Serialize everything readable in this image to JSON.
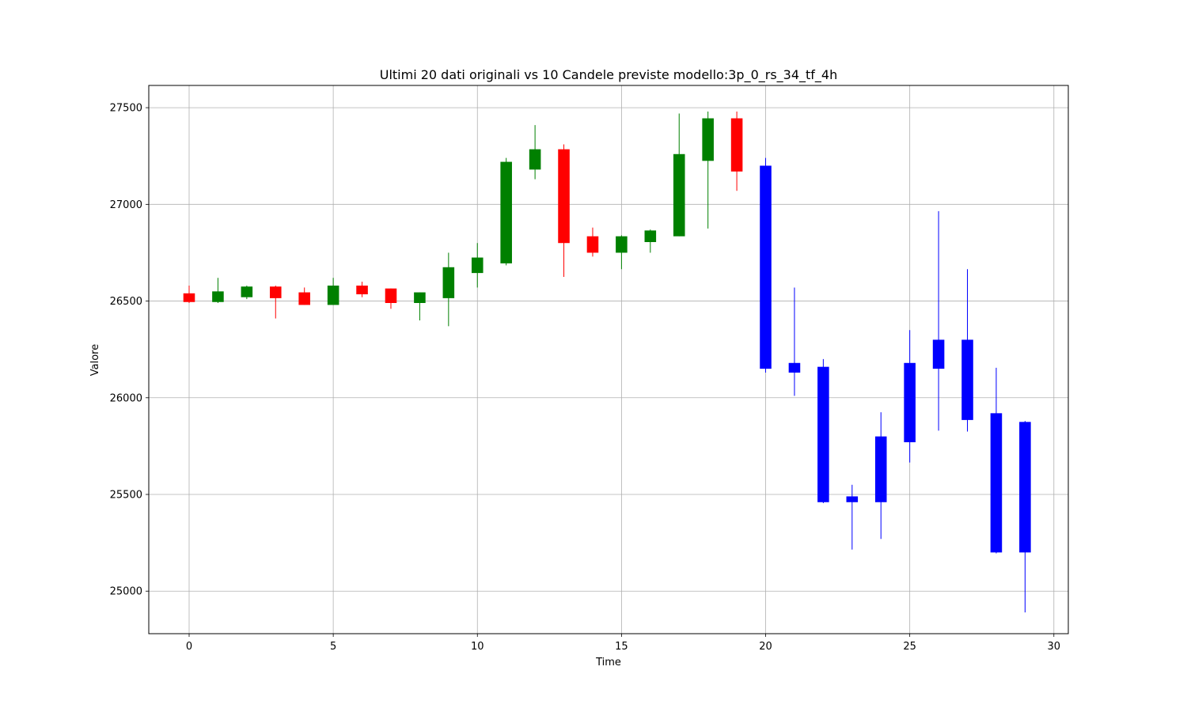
{
  "chart_data": {
    "type": "candlestick",
    "title": "Ultimi 20 dati originali vs 10 Candele previste modello:3p_0_rs_34_tf_4h",
    "xlabel": "Time",
    "ylabel": "Valore",
    "xlim": [
      -1.4,
      30.5
    ],
    "ylim": [
      24780,
      27615
    ],
    "x_ticks": [
      0,
      5,
      10,
      15,
      20,
      25,
      30
    ],
    "y_ticks": [
      25000,
      25500,
      26000,
      26500,
      27000,
      27500
    ],
    "grid": true,
    "colors": {
      "up": "#008000",
      "down": "#ff0000",
      "predicted": "#0000ff",
      "grid": "#b0b0b0",
      "axes": "#000000"
    },
    "original_candles": [
      {
        "t": 0,
        "open": 26540,
        "high": 26580,
        "low": 26490,
        "close": 26495
      },
      {
        "t": 1,
        "open": 26495,
        "high": 26620,
        "low": 26490,
        "close": 26550
      },
      {
        "t": 2,
        "open": 26520,
        "high": 26580,
        "low": 26510,
        "close": 26575
      },
      {
        "t": 3,
        "open": 26575,
        "high": 26580,
        "low": 26410,
        "close": 26515
      },
      {
        "t": 4,
        "open": 26545,
        "high": 26570,
        "low": 26480,
        "close": 26480
      },
      {
        "t": 5,
        "open": 26480,
        "high": 26620,
        "low": 26480,
        "close": 26580
      },
      {
        "t": 6,
        "open": 26580,
        "high": 26600,
        "low": 26520,
        "close": 26535
      },
      {
        "t": 7,
        "open": 26565,
        "high": 26565,
        "low": 26460,
        "close": 26490
      },
      {
        "t": 8,
        "open": 26490,
        "high": 26545,
        "low": 26400,
        "close": 26545
      },
      {
        "t": 9,
        "open": 26515,
        "high": 26750,
        "low": 26370,
        "close": 26675
      },
      {
        "t": 10,
        "open": 26645,
        "high": 26800,
        "low": 26570,
        "close": 26725
      },
      {
        "t": 11,
        "open": 26695,
        "high": 27240,
        "low": 26685,
        "close": 27220
      },
      {
        "t": 12,
        "open": 27180,
        "high": 27410,
        "low": 27130,
        "close": 27285
      },
      {
        "t": 13,
        "open": 27285,
        "high": 27310,
        "low": 26625,
        "close": 26800
      },
      {
        "t": 14,
        "open": 26835,
        "high": 26880,
        "low": 26730,
        "close": 26750
      },
      {
        "t": 15,
        "open": 26750,
        "high": 26840,
        "low": 26665,
        "close": 26835
      },
      {
        "t": 16,
        "open": 26805,
        "high": 26870,
        "low": 26750,
        "close": 26865
      },
      {
        "t": 17,
        "open": 26835,
        "high": 27470,
        "low": 26835,
        "close": 27260
      },
      {
        "t": 18,
        "open": 27225,
        "high": 27480,
        "low": 26875,
        "close": 27445
      },
      {
        "t": 19,
        "open": 27445,
        "high": 27480,
        "low": 27070,
        "close": 27170
      }
    ],
    "predicted_candles": [
      {
        "t": 20,
        "open": 27200,
        "high": 27240,
        "low": 26130,
        "close": 26150
      },
      {
        "t": 21,
        "open": 26180,
        "high": 26570,
        "low": 26010,
        "close": 26130
      },
      {
        "t": 22,
        "open": 26160,
        "high": 26200,
        "low": 25455,
        "close": 25460
      },
      {
        "t": 23,
        "open": 25490,
        "high": 25550,
        "low": 25215,
        "close": 25460
      },
      {
        "t": 24,
        "open": 25460,
        "high": 25925,
        "low": 25270,
        "close": 25800
      },
      {
        "t": 25,
        "open": 25770,
        "high": 26350,
        "low": 25665,
        "close": 26180
      },
      {
        "t": 26,
        "open": 26150,
        "high": 26965,
        "low": 25830,
        "close": 26300
      },
      {
        "t": 27,
        "open": 26300,
        "high": 26665,
        "low": 25825,
        "close": 25885
      },
      {
        "t": 28,
        "open": 25920,
        "high": 26155,
        "low": 25195,
        "close": 25200
      },
      {
        "t": 29,
        "open": 25875,
        "high": 25880,
        "low": 24890,
        "close": 25200
      }
    ]
  }
}
